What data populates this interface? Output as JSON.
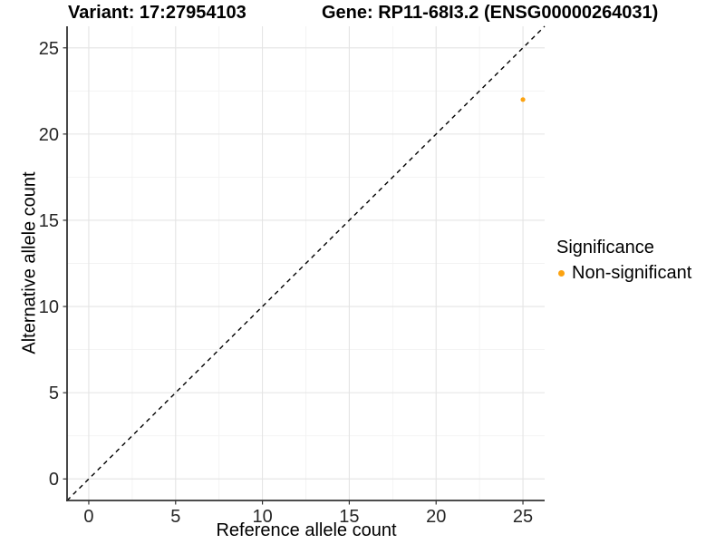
{
  "header": {
    "variant_title": "Variant: 17:27954103",
    "gene_title": "Gene: RP11-68I3.2 (ENSG00000264031)"
  },
  "chart_data": {
    "type": "scatter",
    "title": "Variant: 17:27954103 / Gene: RP11-68I3.2 (ENSG00000264031)",
    "xlabel": "Reference allele count",
    "ylabel": "Alternative allele count",
    "xlim": [
      -1.25,
      26.25
    ],
    "ylim": [
      -1.25,
      26.25
    ],
    "x_ticks": [
      0,
      5,
      10,
      15,
      20,
      25
    ],
    "y_ticks": [
      0,
      5,
      10,
      15,
      20,
      25
    ],
    "x_minor_ticks": [
      2.5,
      7.5,
      12.5,
      17.5,
      22.5
    ],
    "y_minor_ticks": [
      2.5,
      7.5,
      12.5,
      17.5,
      22.5
    ],
    "grid": true,
    "series": [
      {
        "name": "Non-significant",
        "color": "#FCA311",
        "points": [
          {
            "x": 25,
            "y": 22
          }
        ]
      }
    ],
    "reference_line": {
      "type": "identity",
      "slope": 1,
      "intercept": 0,
      "style": "dashed",
      "color": "#000000"
    },
    "legend": {
      "title": "Significance",
      "position": "right",
      "items": [
        {
          "label": "Non-significant",
          "color": "#FCA311"
        }
      ]
    }
  },
  "colors": {
    "point": "#FCA311",
    "axis_line": "#333333",
    "tick_mark": "#333333",
    "tick_label": "#262626",
    "grid_major": "#E4E4E4",
    "grid_minor": "#F2F2F2",
    "reference_line": "#000000",
    "background": "#FFFFFF"
  }
}
